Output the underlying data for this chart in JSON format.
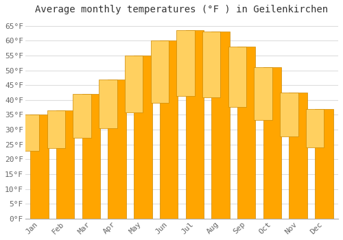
{
  "title": "Average monthly temperatures (°F ) in Geilenkirchen",
  "months": [
    "Jan",
    "Feb",
    "Mar",
    "Apr",
    "May",
    "Jun",
    "Jul",
    "Aug",
    "Sep",
    "Oct",
    "Nov",
    "Dec"
  ],
  "values": [
    35,
    36.5,
    42,
    47,
    55,
    60,
    63.5,
    63,
    58,
    51,
    42.5,
    37
  ],
  "bar_color": "#FFA500",
  "bar_color_top": "#FFD060",
  "bar_edge_color": "#CC8800",
  "background_color": "#FFFFFF",
  "plot_bg_color": "#FFFFFF",
  "grid_color": "#DDDDDD",
  "ylim": [
    0,
    67
  ],
  "yticks": [
    0,
    5,
    10,
    15,
    20,
    25,
    30,
    35,
    40,
    45,
    50,
    55,
    60,
    65
  ],
  "title_fontsize": 10,
  "tick_fontsize": 8,
  "font_family": "monospace"
}
